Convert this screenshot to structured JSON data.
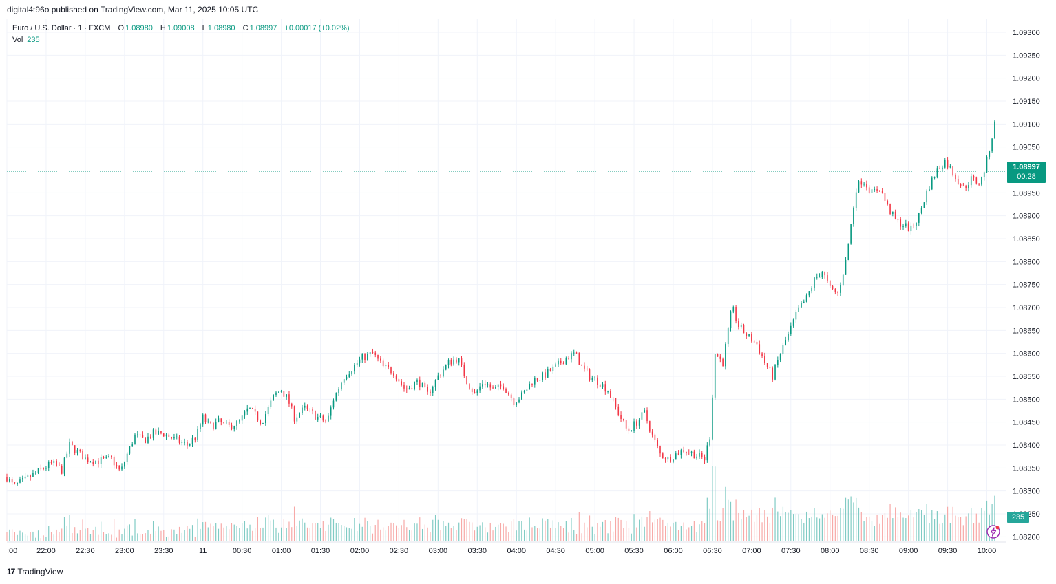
{
  "header": {
    "publish_note": "digital4t96o published on TradingView.com, Mar 11, 2025 10:05 UTC"
  },
  "legend": {
    "symbol": "Euro / U.S. Dollar · 1 · FXCM",
    "open_label": "O",
    "open": "1.08980",
    "high_label": "H",
    "high": "1.09008",
    "low_label": "L",
    "low": "1.08980",
    "close_label": "C",
    "close": "1.08997",
    "change": "+0.00017 (+0.02%)",
    "volume_label": "Vol",
    "volume": "235"
  },
  "price_tag": {
    "price": "1.08997",
    "countdown": "00:28"
  },
  "volume_tag": "235",
  "footer": {
    "brand": "TradingView",
    "brand_mark": "17"
  },
  "colors": {
    "up": "#089981",
    "down": "#f23645",
    "up_volume": "#80cbc4",
    "down_volume": "#f7a9a7",
    "grid": "#f0f3fa"
  },
  "icons": {
    "bolt": "lightning-bolt-icon"
  },
  "chart_data": {
    "type": "candlestick",
    "y_ticks": [
      "1.09300",
      "1.09250",
      "1.09200",
      "1.09150",
      "1.09100",
      "1.09050",
      "1.08950",
      "1.08900",
      "1.08850",
      "1.08800",
      "1.08750",
      "1.08700",
      "1.08650",
      "1.08600",
      "1.08550",
      "1.08500",
      "1.08450",
      "1.08400",
      "1.08350",
      "1.08300",
      "1.08250",
      "1.08200"
    ],
    "y_tick_values": [
      1.093,
      1.0925,
      1.092,
      1.0915,
      1.091,
      1.0905,
      1.0895,
      1.089,
      1.0885,
      1.088,
      1.0875,
      1.087,
      1.0865,
      1.086,
      1.0855,
      1.085,
      1.0845,
      1.084,
      1.0835,
      1.083,
      1.0825,
      1.082
    ],
    "y_range": [
      1.0819,
      1.0933
    ],
    "x_ticks": [
      ":00",
      "22:00",
      "22:30",
      "23:00",
      "23:30",
      "11",
      "00:30",
      "01:00",
      "01:30",
      "02:00",
      "02:30",
      "03:00",
      "03:30",
      "04:00",
      "04:30",
      "05:00",
      "05:30",
      "06:00",
      "06:30",
      "07:00",
      "07:30",
      "08:00",
      "08:30",
      "09:00",
      "09:30",
      "10:00"
    ],
    "x_tick_minutes": [
      -150,
      -120,
      -90,
      -60,
      -30,
      0,
      30,
      60,
      90,
      120,
      150,
      180,
      210,
      240,
      270,
      300,
      330,
      360,
      390,
      420,
      450,
      480,
      510,
      540,
      570,
      600
    ],
    "x_range_minutes": [
      -150,
      605
    ],
    "current_price": 1.08997,
    "price_anchors": [
      [
        -150,
        1.0833
      ],
      [
        -145,
        1.0831
      ],
      [
        -138,
        1.0832
      ],
      [
        -130,
        1.08335
      ],
      [
        -122,
        1.0835
      ],
      [
        -115,
        1.0836
      ],
      [
        -108,
        1.08345
      ],
      [
        -102,
        1.084
      ],
      [
        -96,
        1.08385
      ],
      [
        -90,
        1.0837
      ],
      [
        -80,
        1.08365
      ],
      [
        -70,
        1.0837
      ],
      [
        -63,
        1.0834
      ],
      [
        -58,
        1.0838
      ],
      [
        -52,
        1.0842
      ],
      [
        -45,
        1.0841
      ],
      [
        -38,
        1.08425
      ],
      [
        -30,
        1.08425
      ],
      [
        -20,
        1.0841
      ],
      [
        -12,
        1.084
      ],
      [
        -5,
        1.0842
      ],
      [
        0,
        1.0846
      ],
      [
        5,
        1.0844
      ],
      [
        12,
        1.0845
      ],
      [
        20,
        1.0844
      ],
      [
        28,
        1.0845
      ],
      [
        35,
        1.0848
      ],
      [
        45,
        1.0845
      ],
      [
        55,
        1.0851
      ],
      [
        60,
        1.0852
      ],
      [
        65,
        1.085
      ],
      [
        70,
        1.0846
      ],
      [
        78,
        1.0848
      ],
      [
        88,
        1.0846
      ],
      [
        95,
        1.0845
      ],
      [
        100,
        1.085
      ],
      [
        108,
        1.0855
      ],
      [
        115,
        1.0857
      ],
      [
        122,
        1.0859
      ],
      [
        130,
        1.086
      ],
      [
        138,
        1.0857
      ],
      [
        146,
        1.0856
      ],
      [
        155,
        1.0852
      ],
      [
        165,
        1.0854
      ],
      [
        172,
        1.0851
      ],
      [
        180,
        1.0855
      ],
      [
        188,
        1.0858
      ],
      [
        195,
        1.0859
      ],
      [
        202,
        1.0854
      ],
      [
        208,
        1.0851
      ],
      [
        215,
        1.0854
      ],
      [
        222,
        1.0852
      ],
      [
        230,
        1.0853
      ],
      [
        238,
        1.08495
      ],
      [
        245,
        1.0851
      ],
      [
        252,
        1.0854
      ],
      [
        260,
        1.0855
      ],
      [
        270,
        1.0857
      ],
      [
        278,
        1.0859
      ],
      [
        285,
        1.086
      ],
      [
        290,
        1.0857
      ],
      [
        296,
        1.0855
      ],
      [
        302,
        1.0854
      ],
      [
        310,
        1.0852
      ],
      [
        318,
        1.0847
      ],
      [
        325,
        1.0843
      ],
      [
        332,
        1.0845
      ],
      [
        338,
        1.0847
      ],
      [
        344,
        1.0842
      ],
      [
        350,
        1.0838
      ],
      [
        356,
        1.0837
      ],
      [
        362,
        1.0838
      ],
      [
        368,
        1.0839
      ],
      [
        376,
        1.0838
      ],
      [
        384,
        1.0837
      ],
      [
        388,
        1.0842
      ],
      [
        392,
        1.086
      ],
      [
        398,
        1.0858
      ],
      [
        405,
        1.087
      ],
      [
        410,
        1.0866
      ],
      [
        416,
        1.0864
      ],
      [
        424,
        1.0862
      ],
      [
        430,
        1.0858
      ],
      [
        436,
        1.0855
      ],
      [
        442,
        1.086
      ],
      [
        448,
        1.0864
      ],
      [
        455,
        1.0869
      ],
      [
        462,
        1.0872
      ],
      [
        468,
        1.0876
      ],
      [
        474,
        1.0878
      ],
      [
        480,
        1.0874
      ],
      [
        486,
        1.0873
      ],
      [
        492,
        1.088
      ],
      [
        496,
        1.0888
      ],
      [
        500,
        1.0896
      ],
      [
        505,
        1.0898
      ],
      [
        512,
        1.0895
      ],
      [
        518,
        1.0896
      ],
      [
        524,
        1.0892
      ],
      [
        530,
        1.0889
      ],
      [
        536,
        1.0888
      ],
      [
        542,
        1.0887
      ],
      [
        548,
        1.089
      ],
      [
        555,
        1.0896
      ],
      [
        562,
        1.09
      ],
      [
        568,
        1.0902
      ],
      [
        575,
        1.0899
      ],
      [
        582,
        1.0896
      ],
      [
        588,
        1.0898
      ],
      [
        595,
        1.0897
      ],
      [
        600,
        1.0902
      ],
      [
        606,
        1.091
      ],
      [
        612,
        1.0915
      ],
      [
        618,
        1.0918
      ],
      [
        624,
        1.0916
      ],
      [
        630,
        1.0917
      ],
      [
        636,
        1.0919
      ],
      [
        642,
        1.0912
      ],
      [
        648,
        1.0909
      ],
      [
        654,
        1.0904
      ],
      [
        660,
        1.0905
      ],
      [
        666,
        1.0906
      ],
      [
        672,
        1.0904
      ],
      [
        678,
        1.0903
      ],
      [
        684,
        1.0904
      ],
      [
        690,
        1.09
      ],
      [
        696,
        1.0898
      ],
      [
        702,
        1.0908
      ],
      [
        706,
        1.0917
      ],
      [
        712,
        1.0916
      ],
      [
        718,
        1.0908
      ],
      [
        724,
        1.0902
      ],
      [
        730,
        1.08997
      ]
    ]
  }
}
